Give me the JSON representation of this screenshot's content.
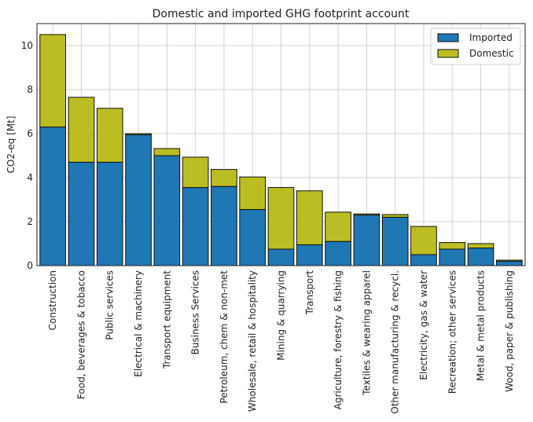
{
  "chart_data": {
    "type": "bar",
    "stacked": true,
    "title": "Domestic and imported GHG footprint account",
    "xlabel": "",
    "ylabel": "CO2-eq [Mt]",
    "ylim": [
      0,
      11
    ],
    "yticks": [
      0,
      2,
      4,
      6,
      8,
      10
    ],
    "grid": true,
    "legend_position": "top-right",
    "categories": [
      "Construction",
      "Food, beverages & tobacco",
      "Public services",
      "Electrical & machinery",
      "Transport equipment",
      "Business Services",
      "Petroleum, chem & non-met",
      "Wholesale, retail & hospitality",
      "Mining & quarrying",
      "Transport",
      "Agriculture, forestry & fishing",
      "Textiles & wearing apparel",
      "Other manufacturing & recycl.",
      "Electricity, gas & water",
      "Recreation; other services",
      "Metal & metal products",
      "Wood, paper & publishing"
    ],
    "series": [
      {
        "name": "Imported",
        "color": "#1f77b4",
        "values": [
          6.3,
          4.7,
          4.7,
          5.95,
          5.0,
          3.55,
          3.6,
          2.55,
          0.75,
          0.95,
          1.1,
          2.3,
          2.2,
          0.5,
          0.75,
          0.8,
          0.2
        ]
      },
      {
        "name": "Domestic",
        "color": "#bcbd22",
        "values": [
          4.2,
          2.95,
          2.45,
          0.05,
          0.32,
          1.38,
          0.77,
          1.48,
          2.8,
          2.45,
          1.33,
          0.05,
          0.12,
          1.28,
          0.3,
          0.2,
          0.05
        ]
      }
    ]
  }
}
